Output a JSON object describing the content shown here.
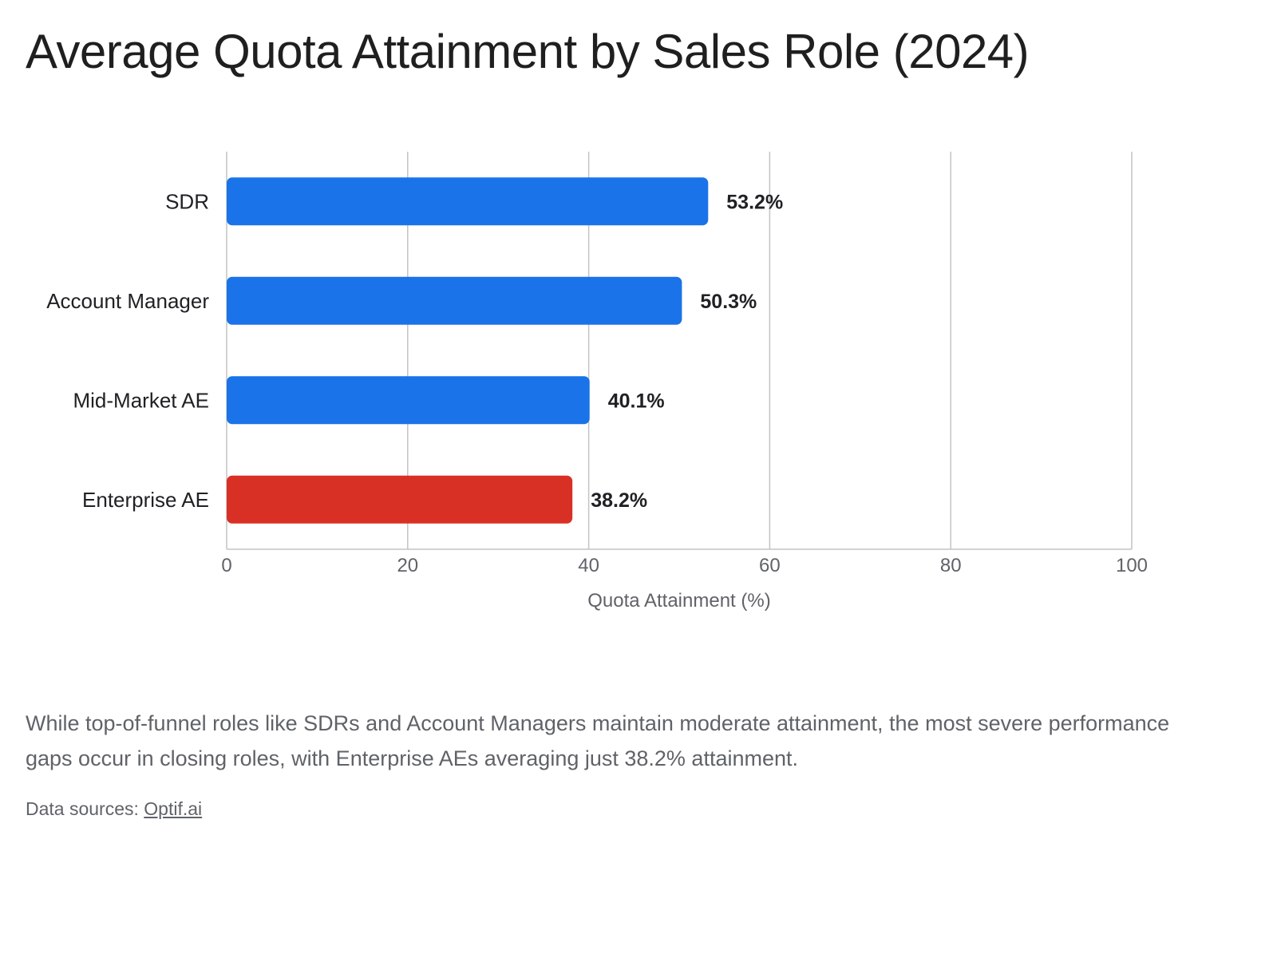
{
  "title": "Average Quota Attainment by Sales Role (2024)",
  "caption": "While top-of-funnel roles like SDRs and Account Managers maintain moderate attainment, the most severe performance gaps occur in closing roles, with Enterprise AEs averaging just 38.2% attainment.",
  "sources": {
    "prefix": "Data sources:",
    "link_text": "Optif.ai"
  },
  "colors": {
    "default_bar": "#1a73e8",
    "highlight_bar": "#d93025",
    "grid": "#c4c4c4",
    "axis_text": "#5f6368"
  },
  "chart_data": {
    "type": "bar",
    "orientation": "horizontal",
    "categories": [
      "SDR",
      "Account Manager",
      "Mid-Market AE",
      "Enterprise AE"
    ],
    "values": [
      53.2,
      50.3,
      40.1,
      38.2
    ],
    "data_labels": [
      "53.2%",
      "50.3%",
      "40.1%",
      "38.2%"
    ],
    "highlighted": [
      "Enterprise AE"
    ],
    "xlabel": "Quota Attainment (%)",
    "ylabel": "",
    "xlim": [
      0,
      100
    ],
    "xticks": [
      0,
      20,
      40,
      60,
      80,
      100
    ],
    "grid": true,
    "legend": "none"
  }
}
